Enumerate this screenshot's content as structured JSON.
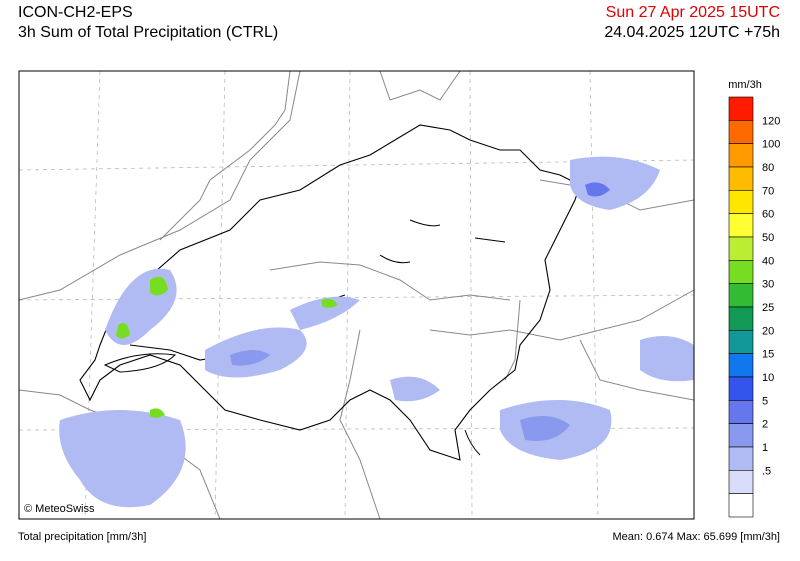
{
  "header": {
    "model": "ICON-CH2-EPS",
    "product": "3h Sum of Total Precipitation (CTRL)",
    "valid_time": "Sun 27 Apr 2025 15UTC",
    "run_time": "24.04.2025 12UTC +75h"
  },
  "map": {
    "credit": "© MeteoSwiss"
  },
  "legend": {
    "unit": "mm/3h",
    "labels": [
      "120",
      "100",
      "80",
      "70",
      "60",
      "50",
      "40",
      "30",
      "25",
      "20",
      "15",
      "10",
      "5",
      "2",
      "1",
      ".5"
    ],
    "colors": [
      "#ff1a00",
      "#ff6a00",
      "#ff9a00",
      "#ffbb00",
      "#ffe600",
      "#ffff33",
      "#bbee33",
      "#77dd22",
      "#33bb33",
      "#119955",
      "#119999",
      "#1177ee",
      "#3355ee",
      "#6677ee",
      "#8899ee",
      "#b0bbf4",
      "#d8ddfa",
      "#ffffff"
    ]
  },
  "footer": {
    "left": "Total precipitation [mm/3h]",
    "right": "Mean:  0.674 Max: 65.699 [mm/3h]"
  }
}
